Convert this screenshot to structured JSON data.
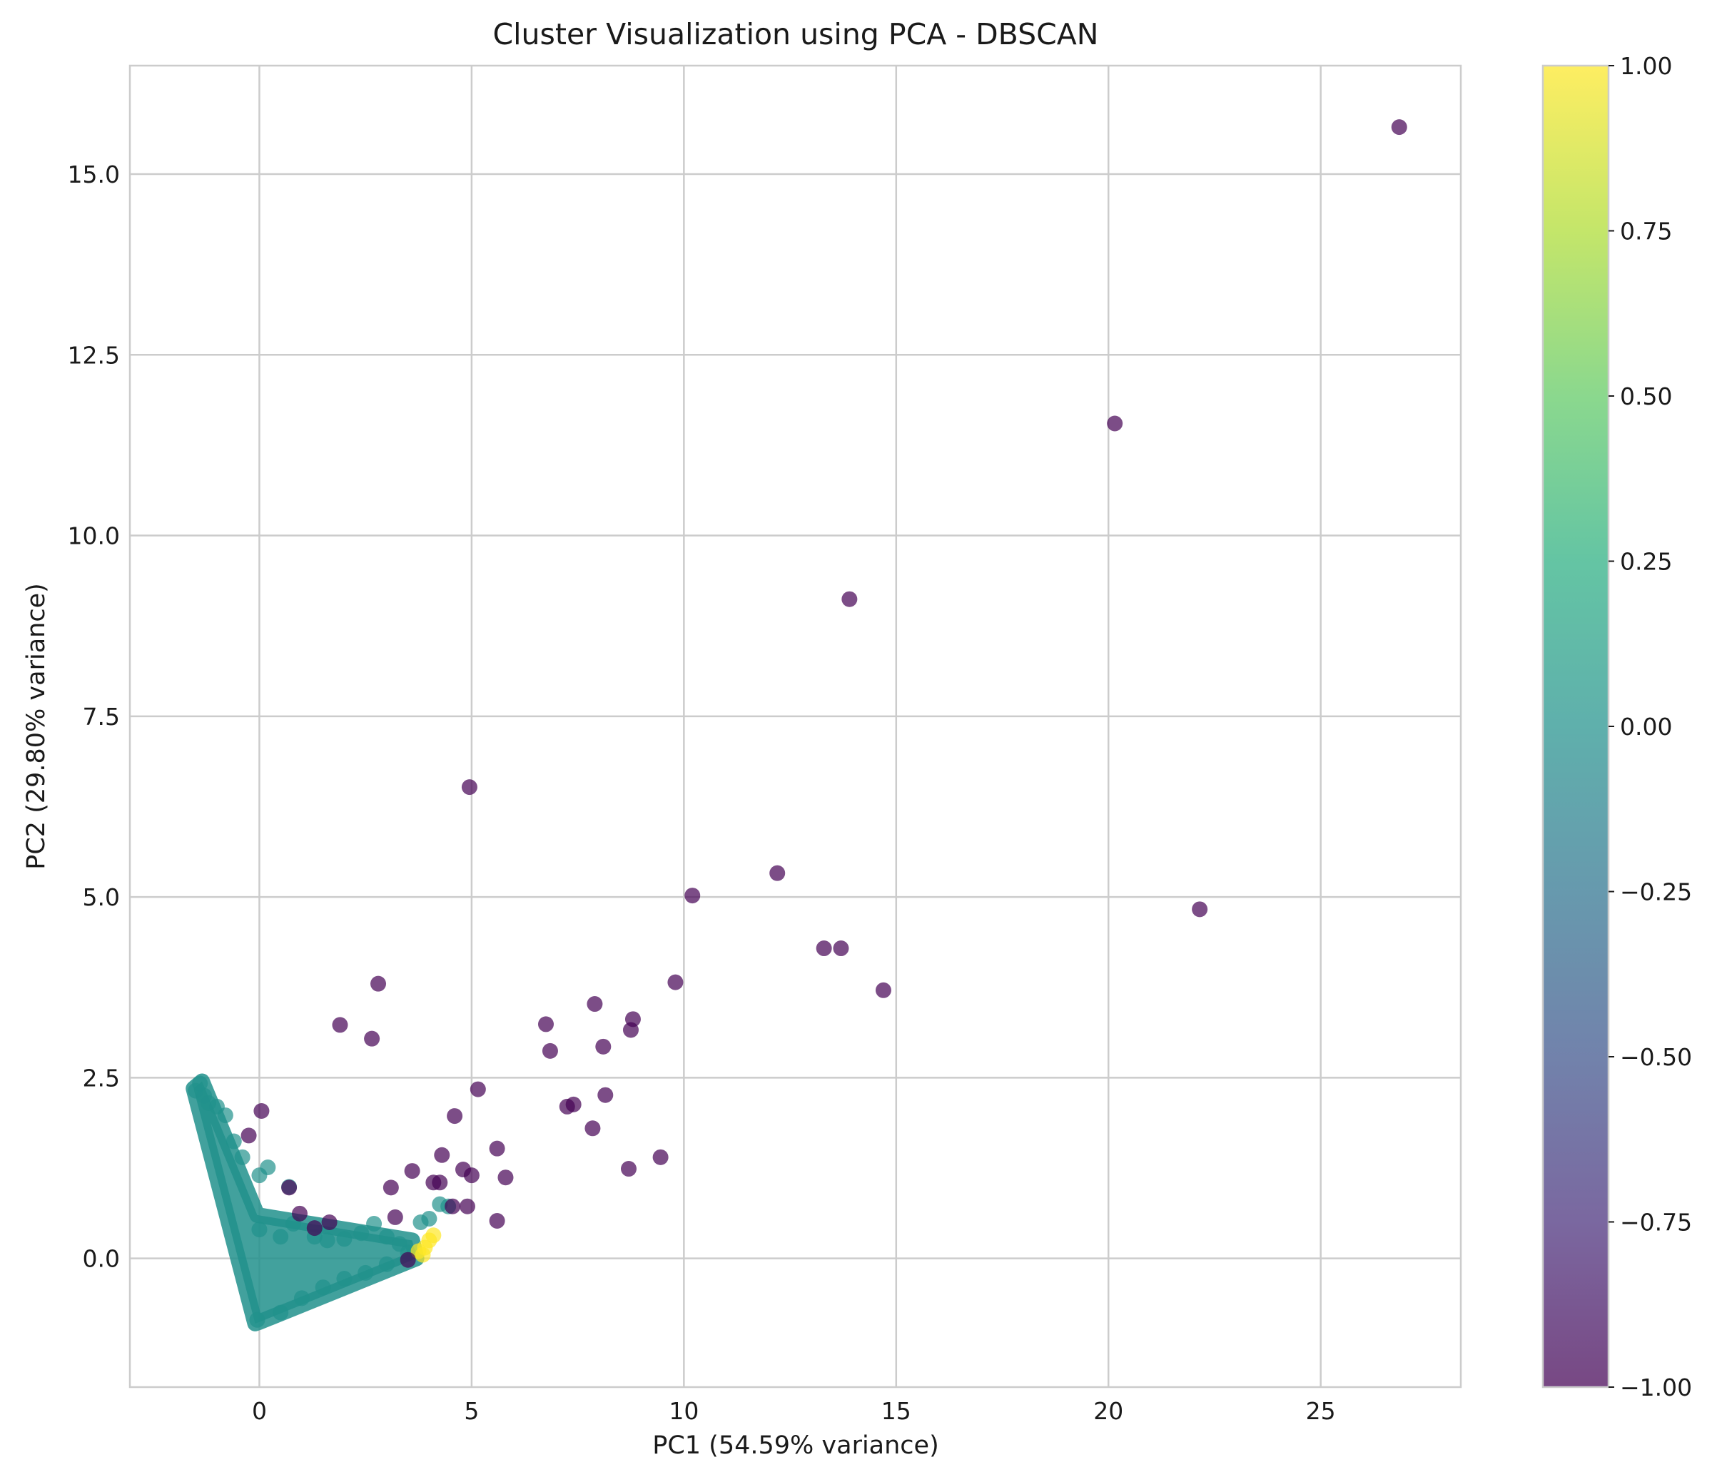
{
  "chart_data": {
    "type": "scatter",
    "title": "Cluster Visualization using PCA - DBSCAN",
    "xlabel": "PC1 (54.59% variance)",
    "ylabel": "PC2 (29.80% variance)",
    "xlim": [
      -3.05,
      28.3
    ],
    "ylim": [
      -1.78,
      16.5
    ],
    "xticks": [
      0,
      5,
      10,
      15,
      20,
      25
    ],
    "yticks": [
      0.0,
      2.5,
      5.0,
      7.5,
      10.0,
      12.5,
      15.0
    ],
    "grid": true,
    "colormap": "viridis",
    "colorbar": {
      "label": "",
      "range": [
        -1.0,
        1.0
      ],
      "ticks": [
        -1.0,
        -0.75,
        -0.5,
        -0.25,
        0.0,
        0.25,
        0.5,
        0.75,
        1.0
      ],
      "tick_labels": [
        "−1.00",
        "−0.75",
        "−0.50",
        "−0.25",
        "0.00",
        "0.25",
        "0.50",
        "0.75",
        "1.00"
      ]
    },
    "colors": {
      "noise": "#440154",
      "cluster0": "#21918c",
      "cluster1": "#fde725"
    },
    "series": [
      {
        "cluster": -1,
        "points": [
          [
            26.85,
            15.65
          ],
          [
            20.15,
            11.55
          ],
          [
            13.9,
            9.12
          ],
          [
            4.95,
            6.52
          ],
          [
            12.2,
            5.33
          ],
          [
            10.2,
            5.02
          ],
          [
            22.15,
            4.83
          ],
          [
            13.3,
            4.29
          ],
          [
            13.7,
            4.29
          ],
          [
            14.7,
            3.71
          ],
          [
            9.8,
            3.82
          ],
          [
            2.8,
            3.8
          ],
          [
            7.9,
            3.52
          ],
          [
            8.8,
            3.31
          ],
          [
            8.75,
            3.16
          ],
          [
            1.9,
            3.23
          ],
          [
            6.75,
            3.24
          ],
          [
            2.65,
            3.04
          ],
          [
            8.1,
            2.93
          ],
          [
            6.85,
            2.87
          ],
          [
            5.15,
            2.34
          ],
          [
            8.15,
            2.26
          ],
          [
            7.25,
            2.1
          ],
          [
            7.4,
            2.13
          ],
          [
            0.05,
            2.04
          ],
          [
            4.6,
            1.97
          ],
          [
            -0.25,
            1.7
          ],
          [
            7.85,
            1.8
          ],
          [
            5.6,
            1.52
          ],
          [
            9.45,
            1.4
          ],
          [
            4.3,
            1.43
          ],
          [
            3.6,
            1.21
          ],
          [
            8.7,
            1.24
          ],
          [
            4.8,
            1.23
          ],
          [
            5.0,
            1.15
          ],
          [
            5.8,
            1.12
          ],
          [
            4.1,
            1.05
          ],
          [
            4.25,
            1.05
          ],
          [
            3.1,
            0.98
          ],
          [
            0.7,
            0.98
          ],
          [
            4.9,
            0.72
          ],
          [
            4.55,
            0.72
          ],
          [
            0.95,
            0.62
          ],
          [
            3.2,
            0.57
          ],
          [
            5.6,
            0.52
          ],
          [
            1.65,
            0.5
          ],
          [
            1.3,
            0.42
          ],
          [
            3.5,
            -0.02
          ]
        ]
      },
      {
        "cluster": 0,
        "points": [
          [
            -1.5,
            2.32
          ],
          [
            -1.4,
            2.42
          ],
          [
            -1.3,
            2.25
          ],
          [
            -1.2,
            2.15
          ],
          [
            -1.0,
            2.1
          ],
          [
            -0.8,
            1.98
          ],
          [
            -0.6,
            1.62
          ],
          [
            -0.4,
            1.4
          ],
          [
            0.0,
            1.15
          ],
          [
            0.2,
            1.26
          ],
          [
            0.7,
            0.99
          ],
          [
            0.8,
            0.48
          ],
          [
            1.3,
            0.3
          ],
          [
            1.6,
            0.25
          ],
          [
            2.0,
            0.27
          ],
          [
            2.4,
            0.35
          ],
          [
            2.7,
            0.48
          ],
          [
            3.0,
            0.3
          ],
          [
            3.3,
            0.2
          ],
          [
            3.8,
            0.5
          ],
          [
            4.0,
            0.55
          ],
          [
            4.25,
            0.75
          ],
          [
            4.45,
            0.72
          ],
          [
            0.0,
            0.4
          ],
          [
            0.5,
            0.3
          ],
          [
            -0.05,
            -0.85
          ],
          [
            0.5,
            -0.75
          ],
          [
            1.0,
            -0.55
          ],
          [
            1.5,
            -0.4
          ],
          [
            2.0,
            -0.28
          ],
          [
            2.5,
            -0.2
          ],
          [
            3.0,
            -0.08
          ],
          [
            3.5,
            0.08
          ]
        ]
      },
      {
        "cluster": 1,
        "points": [
          [
            3.75,
            0.1
          ],
          [
            3.9,
            0.15
          ],
          [
            4.0,
            0.25
          ],
          [
            4.1,
            0.32
          ],
          [
            3.85,
            0.05
          ]
        ]
      }
    ]
  }
}
